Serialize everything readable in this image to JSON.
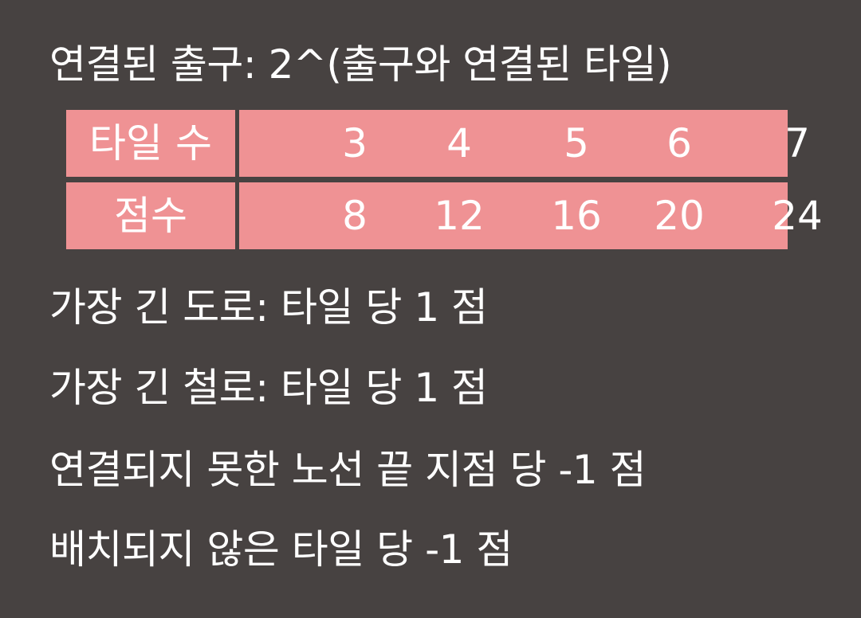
{
  "rules": {
    "connected_exits": "연결된 출구: 2^(출구와 연결된 타일)",
    "longest_road": "가장 긴 도로: 타일 당 1 점",
    "longest_rail": "가장 긴 철로: 타일 당 1 점",
    "unconnected_ends": "연결되지 못한 노선 끝 지점 당 -1 점",
    "unplaced_tiles": "배치되지 않은 타일 당 -1 점"
  },
  "table": {
    "tiles_label": "타일 수",
    "points_label": "점수",
    "tiles": [
      "3",
      "4",
      "5",
      "6",
      "7"
    ],
    "points": [
      "8",
      "12",
      "16",
      "20",
      "24"
    ]
  },
  "colors": {
    "background": "#474241",
    "table_fill": "#ef9294",
    "text": "#ffffff"
  }
}
